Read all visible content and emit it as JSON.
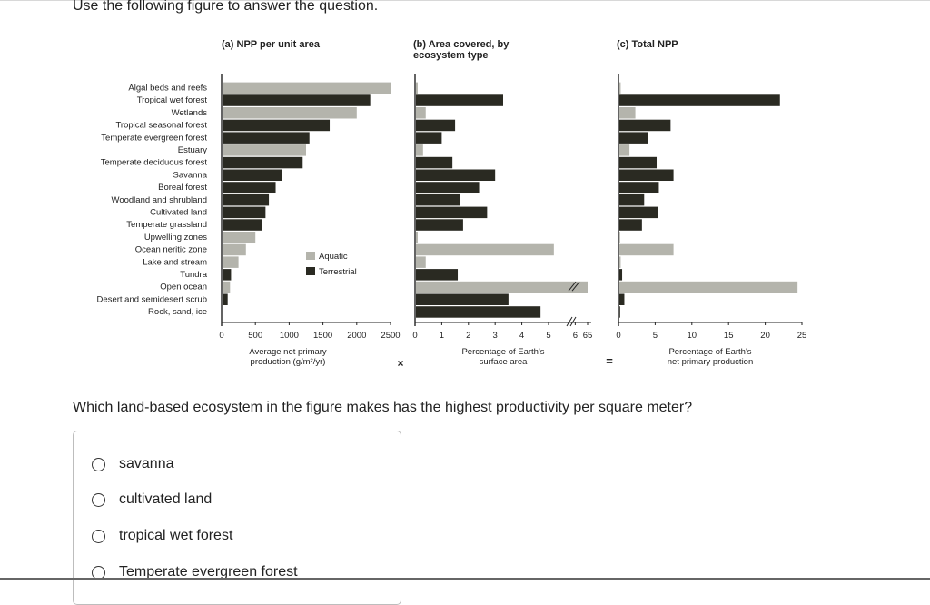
{
  "prompt": "Use the following figure to answer the question.",
  "question": "Which land-based ecosystem in the figure makes has the highest productivity per square meter?",
  "options": [
    {
      "label": "savanna"
    },
    {
      "label": "cultivated land"
    },
    {
      "label": "tropical wet forest"
    },
    {
      "label": "Temperate evergreen forest"
    }
  ],
  "colors": {
    "aquatic": "#b4b4ac",
    "terrestrial": "#2a2a22",
    "axis": "#222222"
  },
  "figure": {
    "multiply_sign": "×",
    "equals_sign": "=",
    "legend": {
      "aquatic": "Aquatic",
      "terrestrial": "Terrestrial"
    },
    "ecosystems": [
      {
        "name": "Algal beds and reefs",
        "type": "aquatic"
      },
      {
        "name": "Tropical wet forest",
        "type": "terrestrial"
      },
      {
        "name": "Wetlands",
        "type": "aquatic"
      },
      {
        "name": "Tropical seasonal forest",
        "type": "terrestrial"
      },
      {
        "name": "Temperate evergreen forest",
        "type": "terrestrial"
      },
      {
        "name": "Estuary",
        "type": "aquatic"
      },
      {
        "name": "Temperate deciduous forest",
        "type": "terrestrial"
      },
      {
        "name": "Savanna",
        "type": "terrestrial"
      },
      {
        "name": "Boreal forest",
        "type": "terrestrial"
      },
      {
        "name": "Woodland and shrubland",
        "type": "terrestrial"
      },
      {
        "name": "Cultivated land",
        "type": "terrestrial"
      },
      {
        "name": "Temperate grassland",
        "type": "terrestrial"
      },
      {
        "name": "Upwelling zones",
        "type": "aquatic"
      },
      {
        "name": "Ocean neritic zone",
        "type": "aquatic"
      },
      {
        "name": "Lake and stream",
        "type": "aquatic"
      },
      {
        "name": "Tundra",
        "type": "terrestrial"
      },
      {
        "name": "Open ocean",
        "type": "aquatic"
      },
      {
        "name": "Desert and semidesert scrub",
        "type": "terrestrial"
      },
      {
        "name": "Rock, sand, ice",
        "type": "terrestrial"
      }
    ]
  },
  "chart_data": [
    {
      "type": "bar",
      "title": "(a) NPP per unit area",
      "xlabel": "Average net primary production (g/m²/yr)",
      "xlim": [
        0,
        2500
      ],
      "ticks": [
        "0",
        "500",
        "1000",
        "1500",
        "2000",
        "2500"
      ],
      "values": [
        2500,
        2200,
        2000,
        1600,
        1300,
        1250,
        1200,
        900,
        800,
        700,
        650,
        600,
        500,
        360,
        250,
        140,
        125,
        90,
        3
      ]
    },
    {
      "type": "bar",
      "title": "(b) Area covered, by ecosystem type",
      "xlabel": "Percentage of Earth's surface area",
      "xlim": [
        0,
        6.6
      ],
      "ticks": [
        "0",
        "1",
        "2",
        "3",
        "4",
        "5",
        "6",
        "65"
      ],
      "axis_break": "//",
      "values": [
        0.1,
        3.3,
        0.4,
        1.5,
        1.0,
        0.3,
        1.4,
        3.0,
        2.4,
        1.7,
        2.7,
        1.8,
        0.1,
        5.2,
        0.4,
        1.6,
        65,
        3.5,
        4.7
      ]
    },
    {
      "type": "bar",
      "title": "(c) Total NPP",
      "xlabel": "Percentage of Earth's net primary production",
      "xlim": [
        0,
        25
      ],
      "ticks": [
        "0",
        "5",
        "10",
        "15",
        "20",
        "25"
      ],
      "values": [
        0.3,
        22.0,
        2.3,
        7.1,
        4.0,
        1.5,
        5.2,
        7.5,
        5.5,
        3.5,
        5.4,
        3.2,
        0.1,
        7.5,
        0.3,
        0.5,
        24.4,
        0.8,
        0.04
      ]
    }
  ]
}
